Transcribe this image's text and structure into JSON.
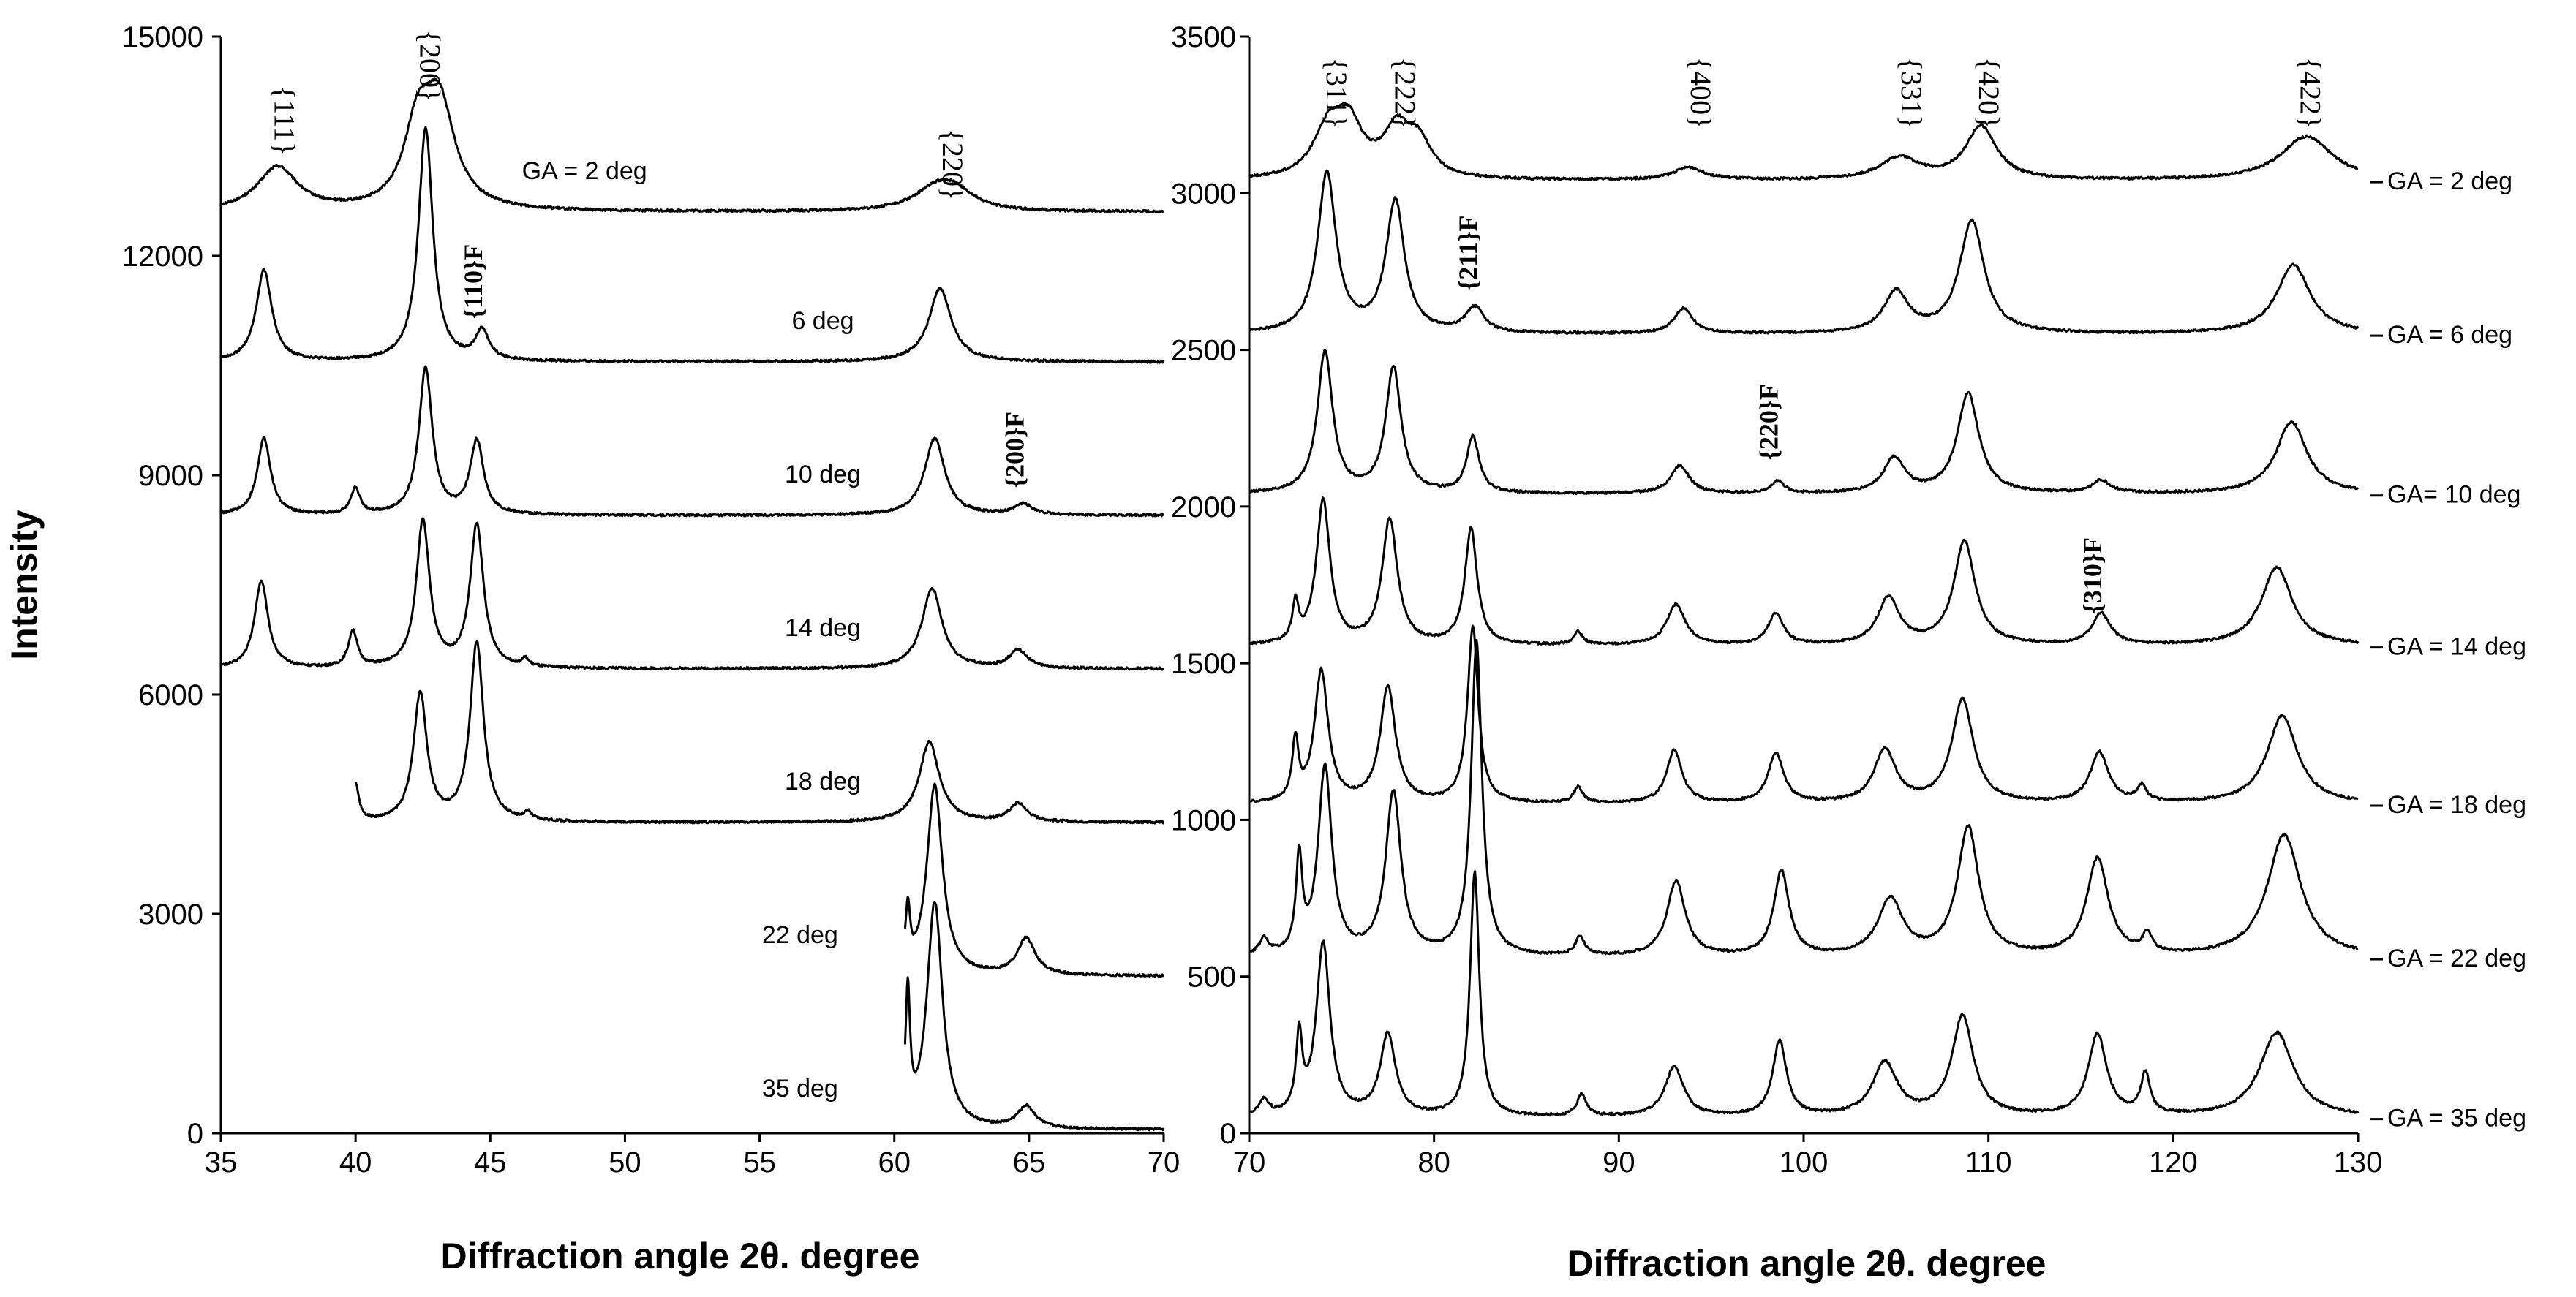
{
  "chart_data": [
    {
      "type": "line",
      "title": "",
      "xlabel": "Diffraction angle 2θ.    degree",
      "ylabel": "Intensity",
      "xlim": [
        35,
        70
      ],
      "ylim": [
        0,
        15000
      ],
      "xticks": [
        "35",
        "40",
        "45",
        "50",
        "55",
        "60",
        "65",
        "70"
      ],
      "yticks": [
        "0",
        "3000",
        "6000",
        "9000",
        "12000",
        "15000"
      ],
      "series": [
        {
          "name": "GA = 2 deg",
          "label": "GA = 2 deg",
          "baseline": 12600,
          "xstart": 35,
          "peaks": [
            [
              37.1,
              600,
              0.9
            ],
            [
              42.3,
              1000,
              0.6
            ],
            [
              43.1,
              1400,
              0.7
            ],
            [
              61.5,
              250,
              1.0
            ],
            [
              62.2,
              250,
              0.9
            ]
          ]
        },
        {
          "name": "6 deg",
          "label": "6 deg",
          "baseline": 10550,
          "xstart": 35,
          "peaks": [
            [
              36.6,
              1250,
              0.35
            ],
            [
              42.6,
              3200,
              0.32
            ],
            [
              44.7,
              400,
              0.3
            ],
            [
              61.7,
              1000,
              0.5
            ]
          ]
        },
        {
          "name": "10 deg",
          "label": "10 deg",
          "baseline": 8450,
          "xstart": 35,
          "peaks": [
            [
              36.6,
              1050,
              0.3
            ],
            [
              40.0,
              350,
              0.2
            ],
            [
              42.6,
              2000,
              0.3
            ],
            [
              44.5,
              1000,
              0.3
            ],
            [
              61.5,
              1050,
              0.45
            ],
            [
              64.8,
              150,
              0.4
            ]
          ]
        },
        {
          "name": "14 deg",
          "label": "14 deg",
          "baseline": 6350,
          "xstart": 35,
          "peaks": [
            [
              36.5,
              1200,
              0.3
            ],
            [
              39.9,
              500,
              0.2
            ],
            [
              42.5,
              2000,
              0.3
            ],
            [
              44.5,
              1950,
              0.3
            ],
            [
              46.3,
              100,
              0.15
            ],
            [
              61.4,
              1100,
              0.45
            ],
            [
              64.6,
              250,
              0.4
            ]
          ]
        },
        {
          "name": "18 deg",
          "label": "18 deg",
          "baseline": 4250,
          "xstart": 40,
          "peaks": [
            [
              40.0,
              500,
              0.15
            ],
            [
              42.4,
              1750,
              0.3
            ],
            [
              44.5,
              2450,
              0.3
            ],
            [
              46.4,
              100,
              0.15
            ],
            [
              61.3,
              1100,
              0.45
            ],
            [
              64.6,
              250,
              0.4
            ]
          ]
        },
        {
          "name": "22 deg",
          "label": "22 deg",
          "baseline": 2150,
          "xstart": 60.4,
          "peaks": [
            [
              60.5,
              800,
              0.1
            ],
            [
              61.5,
              2600,
              0.35
            ],
            [
              64.9,
              500,
              0.4
            ]
          ]
        },
        {
          "name": "35 deg",
          "label": "35 deg",
          "baseline": 50,
          "xstart": 60.4,
          "peaks": [
            [
              60.5,
              1750,
              0.1
            ],
            [
              61.5,
              3100,
              0.35
            ],
            [
              64.9,
              300,
              0.4
            ]
          ]
        }
      ],
      "annotations": [
        {
          "text": "{111}",
          "x": 37.0,
          "y": 13850,
          "rotate": 90,
          "style": "peak"
        },
        {
          "text": "{200}",
          "x": 42.4,
          "y": 14600,
          "rotate": 90,
          "style": "peak"
        },
        {
          "text": "{220}",
          "x": 61.8,
          "y": 13250,
          "rotate": 90,
          "style": "peak"
        },
        {
          "text": "{110}F",
          "x": 44.7,
          "y": 11650,
          "rotate": -90,
          "style": "ferrite"
        },
        {
          "text": "{200}F",
          "x": 64.8,
          "y": 9350,
          "rotate": -90,
          "style": "ferrite"
        }
      ]
    },
    {
      "type": "line",
      "title": "",
      "xlabel": "Diffraction angle 2θ.    degree",
      "ylabel": "",
      "xlim": [
        70,
        130
      ],
      "ylim": [
        0,
        3500
      ],
      "xticks": [
        "70",
        "80",
        "90",
        "100",
        "110",
        "120",
        "130"
      ],
      "yticks": [
        "0",
        "500",
        "1000",
        "1500",
        "2000",
        "2500",
        "3000",
        "3500"
      ],
      "series": [
        {
          "name": "GA = 2 deg",
          "label": "GA = 2 deg",
          "baseline": 3040,
          "xstart": 70,
          "peaks": [
            [
              74.3,
              150,
              1.0
            ],
            [
              75.4,
              150,
              0.9
            ],
            [
              78.0,
              150,
              0.9
            ],
            [
              79.2,
              100,
              0.8
            ],
            [
              93.8,
              40,
              1.0
            ],
            [
              105.2,
              70,
              1.3
            ],
            [
              109.6,
              170,
              1.0
            ],
            [
              127.2,
              140,
              1.7
            ]
          ]
        },
        {
          "name": "GA = 6 deg",
          "label": "GA = 6 deg",
          "baseline": 2550,
          "xstart": 70,
          "peaks": [
            [
              74.2,
              510,
              0.6
            ],
            [
              77.9,
              420,
              0.6
            ],
            [
              82.2,
              80,
              0.6
            ],
            [
              93.5,
              80,
              0.6
            ],
            [
              105.0,
              130,
              0.8
            ],
            [
              109.1,
              360,
              0.8
            ],
            [
              126.5,
              220,
              1.1
            ]
          ]
        },
        {
          "name": "GA= 10 deg",
          "label": "GA= 10 deg",
          "baseline": 2040,
          "xstart": 70,
          "peaks": [
            [
              74.1,
              450,
              0.5
            ],
            [
              77.8,
              400,
              0.5
            ],
            [
              82.1,
              180,
              0.4
            ],
            [
              93.3,
              90,
              0.6
            ],
            [
              98.6,
              40,
              0.4
            ],
            [
              104.9,
              110,
              0.7
            ],
            [
              108.9,
              320,
              0.7
            ],
            [
              116.1,
              40,
              0.6
            ],
            [
              126.4,
              230,
              1.0
            ]
          ]
        },
        {
          "name": "GA = 14 deg",
          "label": "GA = 14 deg",
          "baseline": 1555,
          "xstart": 70,
          "peaks": [
            [
              72.5,
              120,
              0.2
            ],
            [
              74.0,
              460,
              0.45
            ],
            [
              77.6,
              400,
              0.5
            ],
            [
              82.0,
              370,
              0.4
            ],
            [
              87.8,
              40,
              0.3
            ],
            [
              93.1,
              130,
              0.6
            ],
            [
              98.5,
              100,
              0.5
            ],
            [
              104.6,
              150,
              0.7
            ],
            [
              108.7,
              330,
              0.7
            ],
            [
              116.1,
              100,
              0.6
            ],
            [
              125.6,
              250,
              1.0
            ]
          ]
        },
        {
          "name": "GA = 18 deg",
          "label": "GA = 18 deg",
          "baseline": 1050,
          "xstart": 70,
          "peaks": [
            [
              72.5,
              190,
              0.2
            ],
            [
              73.9,
              420,
              0.45
            ],
            [
              77.5,
              370,
              0.5
            ],
            [
              82.1,
              560,
              0.35
            ],
            [
              87.8,
              50,
              0.3
            ],
            [
              93.0,
              170,
              0.5
            ],
            [
              98.5,
              160,
              0.5
            ],
            [
              104.4,
              170,
              0.7
            ],
            [
              108.6,
              330,
              0.7
            ],
            [
              116.0,
              160,
              0.6
            ],
            [
              118.3,
              50,
              0.3
            ],
            [
              125.9,
              280,
              1.0
            ]
          ]
        },
        {
          "name": "GA = 22 deg",
          "label": "GA = 22 deg",
          "baseline": 560,
          "xstart": 70,
          "peaks": [
            [
              70.8,
              50,
              0.3
            ],
            [
              72.7,
              300,
              0.2
            ],
            [
              74.1,
              600,
              0.45
            ],
            [
              77.8,
              520,
              0.5
            ],
            [
              82.3,
              1000,
              0.35
            ],
            [
              87.9,
              60,
              0.3
            ],
            [
              93.1,
              240,
              0.6
            ],
            [
              98.8,
              270,
              0.5
            ],
            [
              104.7,
              180,
              0.8
            ],
            [
              108.9,
              410,
              0.7
            ],
            [
              115.9,
              310,
              0.7
            ],
            [
              118.6,
              60,
              0.3
            ],
            [
              126.0,
              390,
              1.1
            ]
          ]
        },
        {
          "name": "GA = 35 deg",
          "label": "GA = 35 deg",
          "baseline": 50,
          "xstart": 70,
          "peaks": [
            [
              70.8,
              50,
              0.3
            ],
            [
              72.7,
              240,
              0.2
            ],
            [
              74.0,
              550,
              0.45
            ],
            [
              77.5,
              260,
              0.5
            ],
            [
              82.2,
              780,
              0.3
            ],
            [
              88.0,
              70,
              0.3
            ],
            [
              93.0,
              160,
              0.6
            ],
            [
              98.7,
              240,
              0.45
            ],
            [
              104.4,
              170,
              0.8
            ],
            [
              108.6,
              320,
              0.7
            ],
            [
              115.9,
              260,
              0.6
            ],
            [
              118.5,
              130,
              0.3
            ],
            [
              125.6,
              270,
              1.1
            ]
          ]
        }
      ],
      "annotations": [
        {
          "text": "{311}",
          "x": 74.2,
          "y": 3320,
          "rotate": 90,
          "style": "peak"
        },
        {
          "text": "{222}",
          "x": 77.9,
          "y": 3320,
          "rotate": 90,
          "style": "peak"
        },
        {
          "text": "{400}",
          "x": 93.9,
          "y": 3320,
          "rotate": 90,
          "style": "peak"
        },
        {
          "text": "{331}",
          "x": 105.3,
          "y": 3320,
          "rotate": 90,
          "style": "peak"
        },
        {
          "text": "{420}",
          "x": 109.5,
          "y": 3320,
          "rotate": 90,
          "style": "peak"
        },
        {
          "text": "{422}",
          "x": 126.9,
          "y": 3320,
          "rotate": 90,
          "style": "peak"
        },
        {
          "text": "{211}F",
          "x": 82.3,
          "y": 2810,
          "rotate": -90,
          "style": "ferrite"
        },
        {
          "text": "{220}F",
          "x": 98.6,
          "y": 2270,
          "rotate": -90,
          "style": "ferrite"
        },
        {
          "text": "{310}F",
          "x": 116.1,
          "y": 1780,
          "rotate": -90,
          "style": "ferrite"
        }
      ]
    }
  ]
}
